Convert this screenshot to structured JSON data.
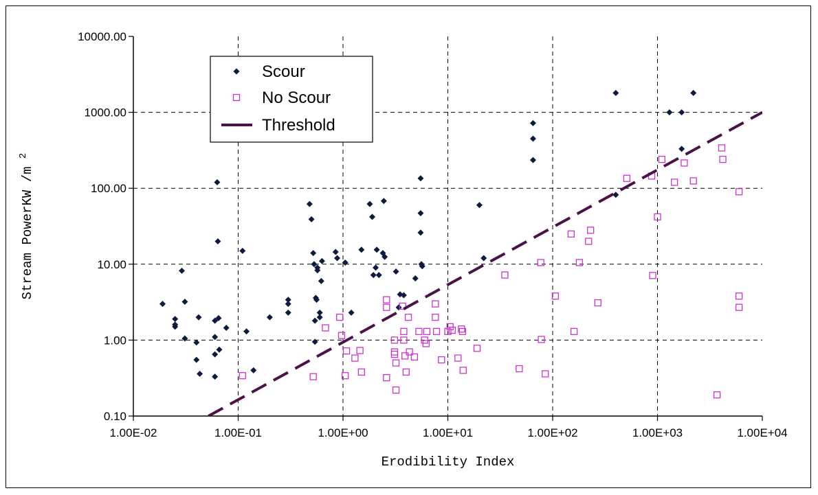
{
  "chart_data": {
    "type": "scatter",
    "title": "",
    "xlabel": "Erodibility Index",
    "ylabel": "Stream PowerKW /m",
    "ylabel_superscript": "2",
    "x_scale": "log",
    "y_scale": "log",
    "xlim": [
      0.01,
      10000
    ],
    "ylim": [
      0.1,
      10000
    ],
    "xticks": [
      "1.00E-02",
      "1.00E-01",
      "1.00E+00",
      "1.00E+01",
      "1.00E+02",
      "1.00E+03",
      "1.00E+04"
    ],
    "yticks": [
      "0.10",
      "1.00",
      "10.00",
      "100.00",
      "1000.00",
      "10000.00"
    ],
    "grid": true,
    "legend_position": "top-left",
    "colors": {
      "scour": "#0d1b3e",
      "no_scour": "#cc33cc",
      "threshold": "#4b1248"
    },
    "series": [
      {
        "name": "Scour",
        "marker": "diamond",
        "points": [
          [
            0.019,
            3.0
          ],
          [
            0.025,
            1.9
          ],
          [
            0.025,
            1.6
          ],
          [
            0.025,
            1.5
          ],
          [
            0.029,
            8.2
          ],
          [
            0.031,
            3.2
          ],
          [
            0.031,
            1.05
          ],
          [
            0.04,
            0.93
          ],
          [
            0.04,
            0.55
          ],
          [
            0.042,
            2.0
          ],
          [
            0.043,
            0.36
          ],
          [
            0.06,
            1.8
          ],
          [
            0.06,
            1.1
          ],
          [
            0.06,
            0.65
          ],
          [
            0.06,
            0.33
          ],
          [
            0.063,
            120
          ],
          [
            0.064,
            20
          ],
          [
            0.065,
            1.95
          ],
          [
            0.066,
            0.75
          ],
          [
            0.077,
            1.45
          ],
          [
            0.11,
            15
          ],
          [
            0.12,
            1.3
          ],
          [
            0.14,
            0.4
          ],
          [
            0.2,
            2.0
          ],
          [
            0.3,
            3.4
          ],
          [
            0.3,
            3.0
          ],
          [
            0.3,
            2.3
          ],
          [
            0.48,
            62
          ],
          [
            0.5,
            39
          ],
          [
            0.52,
            14
          ],
          [
            0.53,
            10
          ],
          [
            0.54,
            1.8
          ],
          [
            0.54,
            0.95
          ],
          [
            0.55,
            3.6
          ],
          [
            0.56,
            3.4
          ],
          [
            0.57,
            9.0
          ],
          [
            0.57,
            8.3
          ],
          [
            0.6,
            2.3
          ],
          [
            0.6,
            2.0
          ],
          [
            0.62,
            6.0
          ],
          [
            0.63,
            11
          ],
          [
            0.85,
            14.5
          ],
          [
            0.88,
            12
          ],
          [
            1.05,
            10.5
          ],
          [
            1.2,
            2.3
          ],
          [
            1.5,
            15.5
          ],
          [
            1.8,
            62
          ],
          [
            1.9,
            42
          ],
          [
            1.95,
            7.2
          ],
          [
            2.05,
            9.0
          ],
          [
            2.1,
            15.5
          ],
          [
            2.2,
            7.2
          ],
          [
            2.4,
            14
          ],
          [
            2.45,
            68
          ],
          [
            2.5,
            12.5
          ],
          [
            3.2,
            8.0
          ],
          [
            3.4,
            2.7
          ],
          [
            3.5,
            4.0
          ],
          [
            3.8,
            3.9
          ],
          [
            4.9,
            6.5
          ],
          [
            5.5,
            135
          ],
          [
            5.5,
            47
          ],
          [
            5.5,
            26
          ],
          [
            5.6,
            10
          ],
          [
            5.7,
            9.4
          ],
          [
            20,
            60
          ],
          [
            22,
            12
          ],
          [
            65,
            720
          ],
          [
            65,
            450
          ],
          [
            65,
            235
          ],
          [
            400,
            1800
          ],
          [
            400,
            82
          ],
          [
            1300,
            1000
          ],
          [
            1700,
            1000
          ],
          [
            1700,
            330
          ],
          [
            2200,
            1800
          ]
        ]
      },
      {
        "name": "No Scour",
        "marker": "square",
        "points": [
          [
            0.11,
            0.34
          ],
          [
            0.52,
            0.33
          ],
          [
            0.68,
            1.45
          ],
          [
            0.93,
            2.0
          ],
          [
            0.97,
            1.15
          ],
          [
            1.05,
            0.34
          ],
          [
            1.08,
            0.72
          ],
          [
            1.3,
            0.58
          ],
          [
            1.45,
            0.73
          ],
          [
            1.5,
            0.38
          ],
          [
            2.6,
            3.4
          ],
          [
            2.6,
            2.7
          ],
          [
            2.6,
            0.32
          ],
          [
            3.1,
            1.0
          ],
          [
            3.1,
            0.7
          ],
          [
            3.1,
            0.65
          ],
          [
            3.2,
            0.5
          ],
          [
            3.2,
            0.22
          ],
          [
            3.7,
            2.8
          ],
          [
            3.8,
            1.3
          ],
          [
            3.8,
            1.0
          ],
          [
            3.9,
            0.62
          ],
          [
            4.0,
            0.38
          ],
          [
            4.2,
            2.0
          ],
          [
            4.3,
            0.7
          ],
          [
            4.8,
            0.6
          ],
          [
            5.3,
            1.3
          ],
          [
            6.0,
            1.0
          ],
          [
            6.2,
            0.9
          ],
          [
            6.3,
            1.3
          ],
          [
            7.6,
            3.0
          ],
          [
            7.6,
            2.0
          ],
          [
            7.8,
            1.3
          ],
          [
            8.7,
            0.55
          ],
          [
            10,
            1.3
          ],
          [
            10.5,
            1.5
          ],
          [
            11,
            1.35
          ],
          [
            12.5,
            0.58
          ],
          [
            13.5,
            1.4
          ],
          [
            13.8,
            1.3
          ],
          [
            14,
            0.4
          ],
          [
            19,
            0.78
          ],
          [
            35,
            7.2
          ],
          [
            48,
            0.42
          ],
          [
            77,
            10.5
          ],
          [
            78,
            1.02
          ],
          [
            85,
            0.36
          ],
          [
            106,
            3.8
          ],
          [
            150,
            25
          ],
          [
            160,
            1.3
          ],
          [
            180,
            10.5
          ],
          [
            220,
            20
          ],
          [
            230,
            28
          ],
          [
            270,
            3.1
          ],
          [
            510,
            135
          ],
          [
            880,
            145
          ],
          [
            900,
            7.1
          ],
          [
            1000,
            42
          ],
          [
            1100,
            240
          ],
          [
            1450,
            120
          ],
          [
            1800,
            215
          ],
          [
            2200,
            125
          ],
          [
            3700,
            0.19
          ],
          [
            4100,
            340
          ],
          [
            4200,
            240
          ],
          [
            6000,
            90
          ],
          [
            6000,
            3.8
          ],
          [
            6000,
            2.7
          ]
        ]
      },
      {
        "name": "Threshold",
        "line": "dashed",
        "points": [
          [
            0.052,
            0.1
          ],
          [
            10000,
            1000
          ]
        ]
      }
    ]
  }
}
